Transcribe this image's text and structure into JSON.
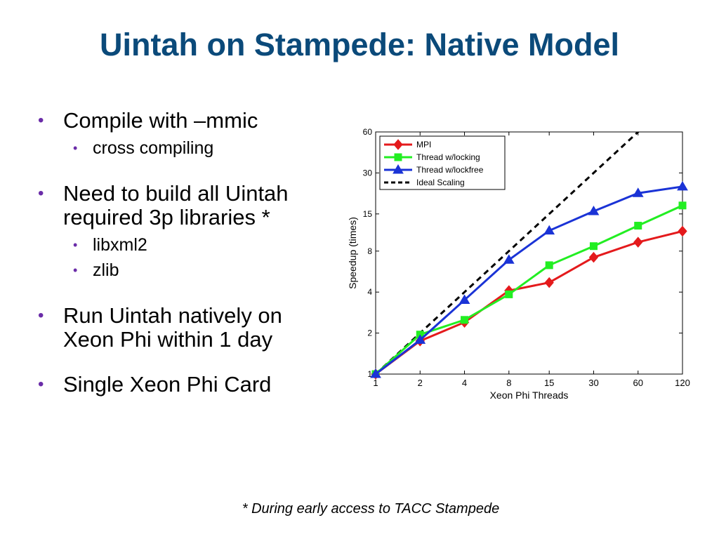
{
  "slide": {
    "title": "Uintah on Stampede: Native Model",
    "bullets": [
      {
        "text": "Compile with –mmic",
        "subs": [
          "cross compiling"
        ]
      },
      {
        "text": "Need to build all Uintah required 3p libraries *",
        "subs": [
          "libxml2",
          "zlib"
        ]
      },
      {
        "text": "Run Uintah natively on Xeon Phi within 1 day",
        "subs": []
      },
      {
        "text": "Single Xeon Phi Card",
        "subs": []
      }
    ],
    "footnote": "* During early access to TACC Stampede",
    "bullet_glyph": "•",
    "colors": {
      "title": "#0b4a7a",
      "bullet": "#6a2ca8"
    }
  },
  "chart_data": {
    "type": "line",
    "x": [
      1,
      2,
      4,
      8,
      15,
      30,
      60,
      120
    ],
    "x_tick_labels": [
      "1",
      "2",
      "4",
      "8",
      "15",
      "30",
      "60",
      "120"
    ],
    "y_ticks": [
      1,
      2,
      4,
      8,
      15,
      30,
      60
    ],
    "y_tick_labels": [
      "1",
      "2",
      "4",
      "8",
      "15",
      "30",
      "60"
    ],
    "xlabel": "Xeon Phi Threads",
    "ylabel": "Speedup (times)",
    "xscale": "log",
    "yscale": "log",
    "xlim": [
      1,
      120
    ],
    "ylim": [
      1,
      60
    ],
    "grid": false,
    "legend_position": "top-left",
    "series": [
      {
        "name": "MPI",
        "color": "#e41a1c",
        "marker": "diamond",
        "dashed": false,
        "values": [
          1,
          1.75,
          2.4,
          4.1,
          4.7,
          7.2,
          9.3,
          11.2
        ]
      },
      {
        "name": "Thread w/locking",
        "color": "#22ee22",
        "marker": "square",
        "dashed": false,
        "values": [
          1,
          1.95,
          2.5,
          3.85,
          6.3,
          8.7,
          12.3,
          17.3
        ]
      },
      {
        "name": "Thread w/lockfree",
        "color": "#1a33d6",
        "marker": "triangle",
        "dashed": false,
        "values": [
          1,
          1.78,
          3.5,
          6.9,
          11.3,
          15.7,
          21.3,
          23.8
        ]
      },
      {
        "name": "Ideal Scaling",
        "color": "#000000",
        "marker": "none",
        "dashed": true,
        "values": [
          1,
          2,
          4,
          8,
          15,
          30,
          60,
          120
        ]
      }
    ]
  }
}
